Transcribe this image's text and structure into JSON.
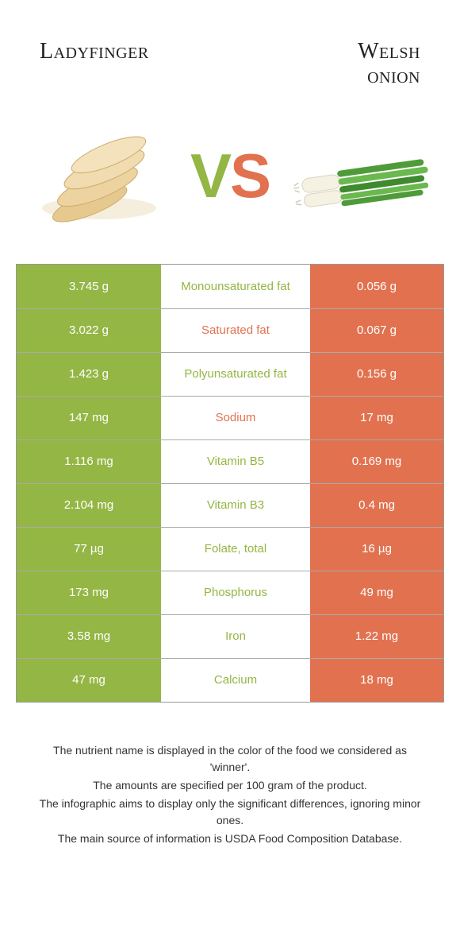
{
  "header": {
    "left_title": "Ladyfinger",
    "right_title_line1": "Welsh",
    "right_title_line2": "onion"
  },
  "vs": {
    "v_color": "#94b644",
    "s_color": "#e2724f"
  },
  "colors": {
    "left_cell_bg": "#94b644",
    "right_cell_bg": "#e2724f",
    "mid_text_green": "#94b644",
    "mid_text_orange": "#e2724f"
  },
  "rows": [
    {
      "left": "3.745 g",
      "mid": "Monounsaturated fat",
      "mid_color": "#94b644",
      "right": "0.056 g"
    },
    {
      "left": "3.022 g",
      "mid": "Saturated fat",
      "mid_color": "#e2724f",
      "right": "0.067 g"
    },
    {
      "left": "1.423 g",
      "mid": "Polyunsaturated fat",
      "mid_color": "#94b644",
      "right": "0.156 g"
    },
    {
      "left": "147 mg",
      "mid": "Sodium",
      "mid_color": "#e2724f",
      "right": "17 mg"
    },
    {
      "left": "1.116 mg",
      "mid": "Vitamin B5",
      "mid_color": "#94b644",
      "right": "0.169 mg"
    },
    {
      "left": "2.104 mg",
      "mid": "Vitamin B3",
      "mid_color": "#94b644",
      "right": "0.4 mg"
    },
    {
      "left": "77 µg",
      "mid": "Folate, total",
      "mid_color": "#94b644",
      "right": "16 µg"
    },
    {
      "left": "173 mg",
      "mid": "Phosphorus",
      "mid_color": "#94b644",
      "right": "49 mg"
    },
    {
      "left": "3.58 mg",
      "mid": "Iron",
      "mid_color": "#94b644",
      "right": "1.22 mg"
    },
    {
      "left": "47 mg",
      "mid": "Calcium",
      "mid_color": "#94b644",
      "right": "18 mg"
    }
  ],
  "footer": {
    "line1": "The nutrient name is displayed in the color of the food we considered as 'winner'.",
    "line2": "The amounts are specified per 100 gram of the product.",
    "line3": "The infographic aims to display only the significant differences, ignoring minor ones.",
    "line4": "The main source of information is USDA Food Composition Database."
  }
}
